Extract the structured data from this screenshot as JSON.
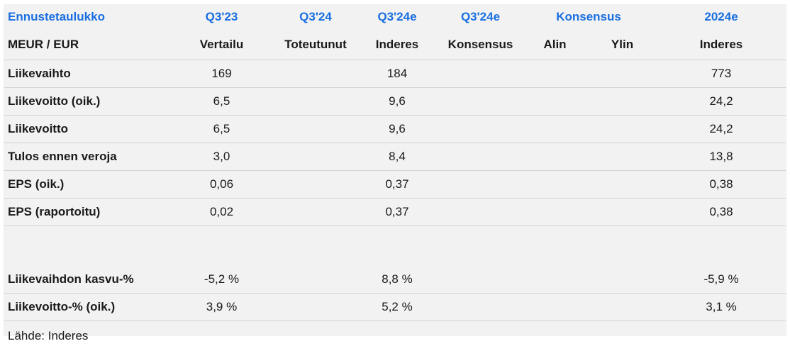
{
  "header_top": {
    "title": "Ennustetaulukko",
    "col1": "Q3'23",
    "col2": "Q3'24",
    "col3": "Q3'24e",
    "col4": "Q3'24e",
    "col5": "Konsensus",
    "col7": "2024e"
  },
  "header_sub": {
    "unit": "MEUR / EUR",
    "col1": "Vertailu",
    "col2": "Toteutunut",
    "col3": "Inderes",
    "col4": "Konsensus",
    "col5": "Alin",
    "col6": "Ylin",
    "col7": "Inderes"
  },
  "rows": [
    {
      "label": "Liikevaihto",
      "q3_23": "169",
      "q3_24": "",
      "q3_24e_inderes": "184",
      "q3_24e_consensus": "",
      "low": "",
      "high": "",
      "y2024e": "773"
    },
    {
      "label": "Liikevoitto (oik.)",
      "q3_23": "6,5",
      "q3_24": "",
      "q3_24e_inderes": "9,6",
      "q3_24e_consensus": "",
      "low": "",
      "high": "",
      "y2024e": "24,2"
    },
    {
      "label": "Liikevoitto",
      "q3_23": "6,5",
      "q3_24": "",
      "q3_24e_inderes": "9,6",
      "q3_24e_consensus": "",
      "low": "",
      "high": "",
      "y2024e": "24,2"
    },
    {
      "label": "Tulos ennen veroja",
      "q3_23": "3,0",
      "q3_24": "",
      "q3_24e_inderes": "8,4",
      "q3_24e_consensus": "",
      "low": "",
      "high": "",
      "y2024e": "13,8"
    },
    {
      "label": "EPS (oik.)",
      "q3_23": "0,06",
      "q3_24": "",
      "q3_24e_inderes": "0,37",
      "q3_24e_consensus": "",
      "low": "",
      "high": "",
      "y2024e": "0,38"
    },
    {
      "label": "EPS (raportoitu)",
      "q3_23": "0,02",
      "q3_24": "",
      "q3_24e_inderes": "0,37",
      "q3_24e_consensus": "",
      "low": "",
      "high": "",
      "y2024e": "0,38"
    }
  ],
  "growth_rows": [
    {
      "label": "Liikevaihdon kasvu-%",
      "q3_23": "-5,2 %",
      "q3_24": "",
      "q3_24e_inderes": "8,8 %",
      "q3_24e_consensus": "",
      "low": "",
      "high": "",
      "y2024e": "-5,9 %"
    },
    {
      "label": "Liikevoitto-% (oik.)",
      "q3_23": "3,9 %",
      "q3_24": "",
      "q3_24e_inderes": "5,2 %",
      "q3_24e_consensus": "",
      "low": "",
      "high": "",
      "y2024e": "3,1 %"
    }
  ],
  "source": "Lähde: Inderes",
  "colors": {
    "header_blue": "#1a6fe0",
    "panel_bg": "#f2f2f2",
    "divider": "#d4d4d4"
  }
}
